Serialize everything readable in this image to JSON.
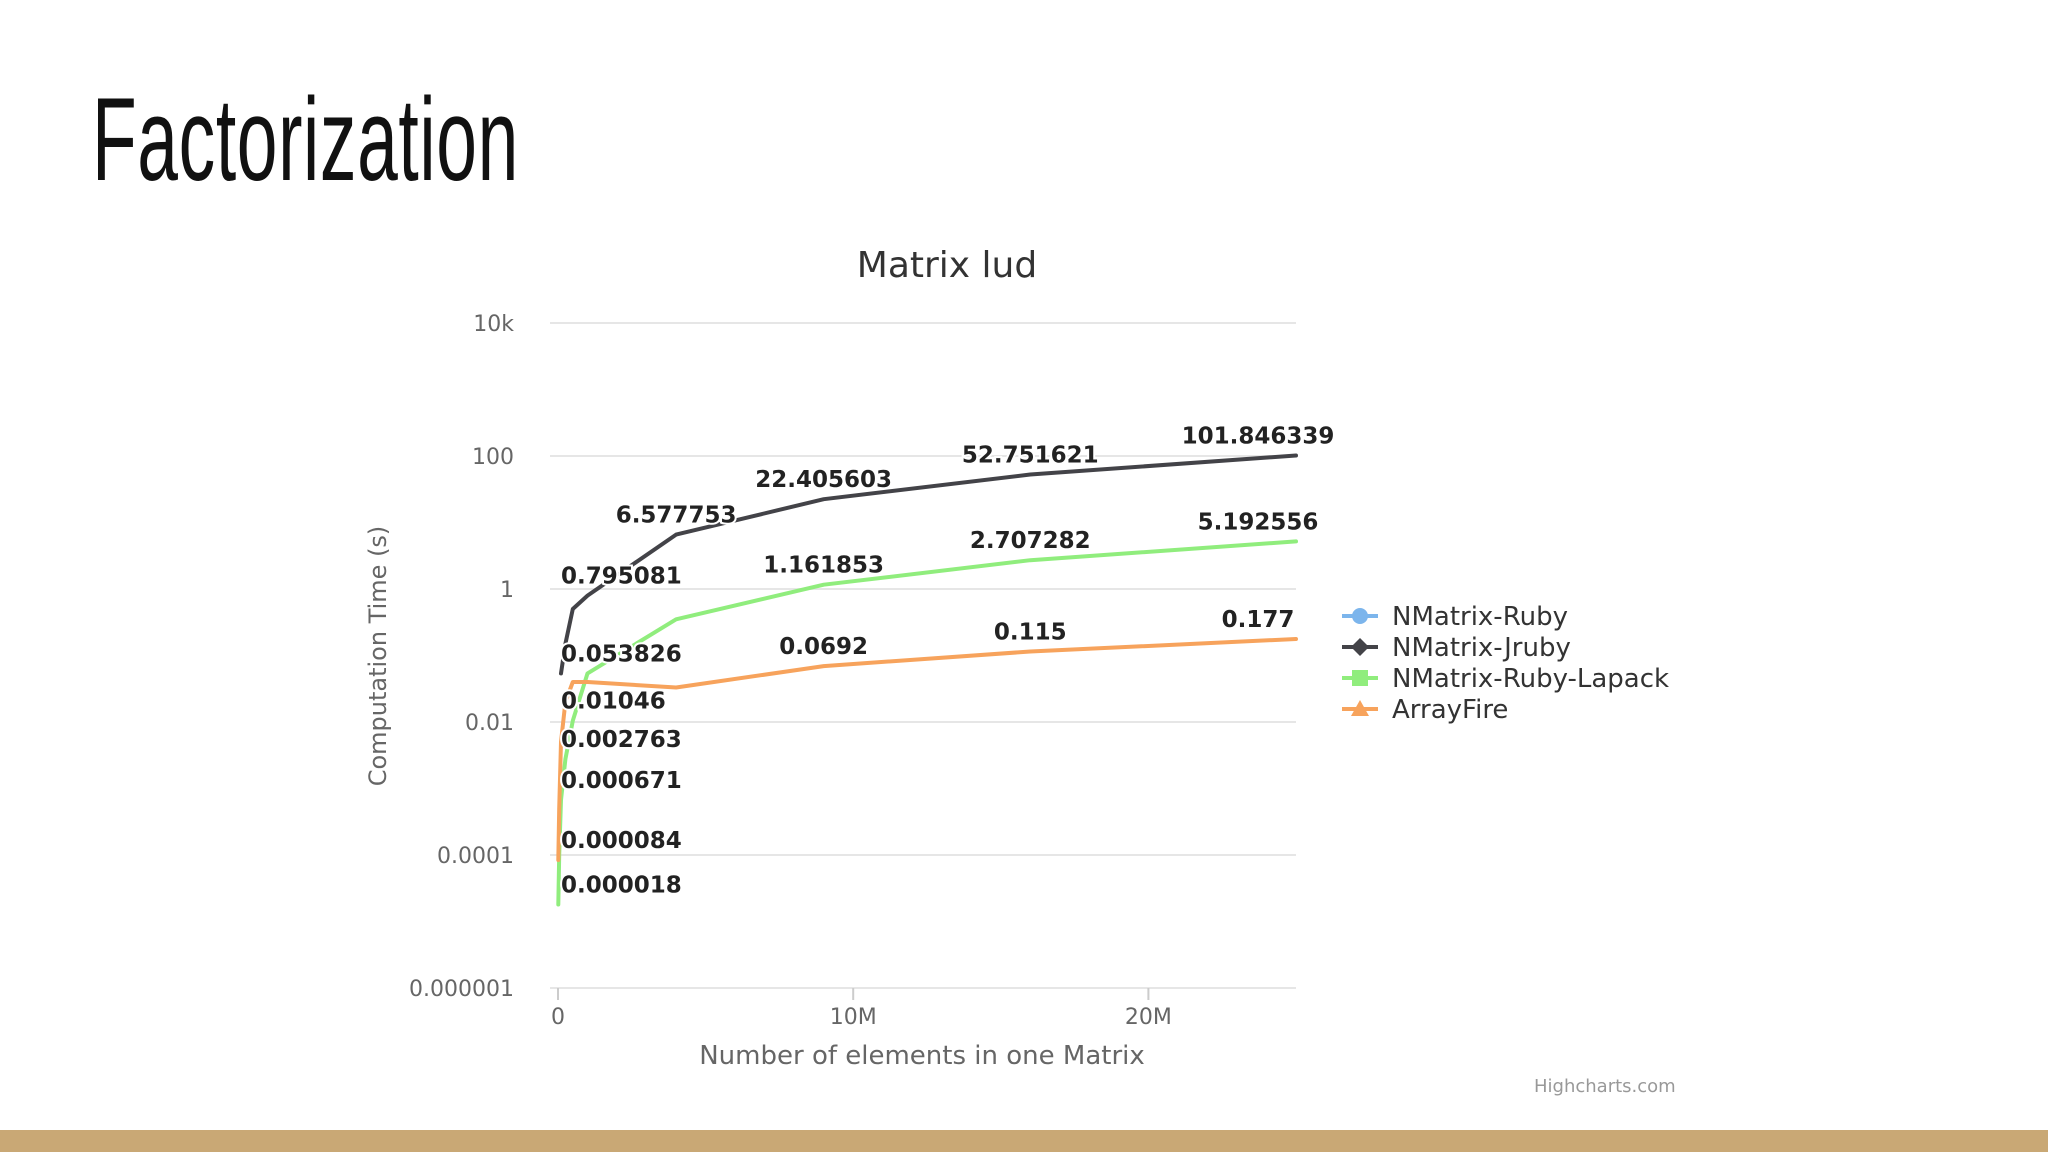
{
  "slide": {
    "title": "Factorization",
    "credit": "Highcharts.com"
  },
  "colors": {
    "bottom_bar": "#c9a875",
    "grid": "#e6e6e6",
    "axis_text": "#666666",
    "label_text": "#222222"
  },
  "chart_data": {
    "type": "line",
    "title": "Matrix lud",
    "xlabel": "Number of elements in one Matrix",
    "ylabel": "Computation Time (s)",
    "y_scale": "log",
    "xlim": [
      0,
      25000000
    ],
    "ylim": [
      1e-06,
      10000
    ],
    "x_ticks": [
      {
        "value": 0,
        "label": "0"
      },
      {
        "value": 10000000,
        "label": "10M"
      },
      {
        "value": 20000000,
        "label": "20M"
      }
    ],
    "y_ticks": [
      {
        "value": 10000,
        "label": "10k"
      },
      {
        "value": 100,
        "label": "100"
      },
      {
        "value": 1,
        "label": "1"
      },
      {
        "value": 0.01,
        "label": "0.01"
      },
      {
        "value": 0.0001,
        "label": "0.0001"
      },
      {
        "value": 1e-06,
        "label": "0.000001"
      }
    ],
    "grid": true,
    "legend_position": "right",
    "series": [
      {
        "name": "NMatrix-Ruby",
        "color": "#7cb5ec",
        "marker": "circle",
        "points": []
      },
      {
        "name": "NMatrix-Jruby",
        "color": "#434348",
        "marker": "diamond",
        "points": [
          {
            "x": 100000,
            "y": 0.053826
          },
          {
            "x": 250000,
            "y": 0.15
          },
          {
            "x": 500000,
            "y": 0.5
          },
          {
            "x": 1000000,
            "y": 0.795081
          },
          {
            "x": 4000000,
            "y": 6.577753
          },
          {
            "x": 9000000,
            "y": 22.405603
          },
          {
            "x": 16000000,
            "y": 52.751621
          },
          {
            "x": 25000000,
            "y": 101.846339
          }
        ]
      },
      {
        "name": "NMatrix-Ruby-Lapack",
        "color": "#90ed7d",
        "marker": "square",
        "points": [
          {
            "x": 10000,
            "y": 1.8e-05
          },
          {
            "x": 40000,
            "y": 0.0001
          },
          {
            "x": 100000,
            "y": 0.000671
          },
          {
            "x": 250000,
            "y": 0.002763
          },
          {
            "x": 500000,
            "y": 0.01046
          },
          {
            "x": 1000000,
            "y": 0.053826
          },
          {
            "x": 4000000,
            "y": 0.35
          },
          {
            "x": 9000000,
            "y": 1.161853
          },
          {
            "x": 16000000,
            "y": 2.707282
          },
          {
            "x": 25000000,
            "y": 5.192556
          }
        ]
      },
      {
        "name": "ArrayFire",
        "color": "#f7a35c",
        "marker": "triangle",
        "points": [
          {
            "x": 10000,
            "y": 8.4e-05
          },
          {
            "x": 40000,
            "y": 0.0005
          },
          {
            "x": 100000,
            "y": 0.005
          },
          {
            "x": 250000,
            "y": 0.02
          },
          {
            "x": 500000,
            "y": 0.04
          },
          {
            "x": 1000000,
            "y": 0.04
          },
          {
            "x": 4000000,
            "y": 0.033
          },
          {
            "x": 9000000,
            "y": 0.0692
          },
          {
            "x": 16000000,
            "y": 0.115
          },
          {
            "x": 25000000,
            "y": 0.177
          }
        ]
      }
    ],
    "data_labels": [
      {
        "text": "101.846339",
        "x": 25000000,
        "y": 101.846339
      },
      {
        "text": "52.751621",
        "x": 16000000,
        "y": 52.751621
      },
      {
        "text": "22.405603",
        "x": 9000000,
        "y": 22.405603
      },
      {
        "text": "6.577753",
        "x": 4000000,
        "y": 6.577753
      },
      {
        "text": "0.795081",
        "x": 1000000,
        "y": 0.795081
      },
      {
        "text": "0.053826",
        "x": 1000000,
        "y": 0.053826
      },
      {
        "text": "0.01046",
        "x": 1000000,
        "y": 0.01046
      },
      {
        "text": "0.002763",
        "x": 1000000,
        "y": 0.002763
      },
      {
        "text": "0.000671",
        "x": 1000000,
        "y": 0.000671
      },
      {
        "text": "0.000084",
        "x": 1000000,
        "y": 8.4e-05
      },
      {
        "text": "0.000018",
        "x": 1000000,
        "y": 1.8e-05
      },
      {
        "text": "5.192556",
        "x": 25000000,
        "y": 5.192556
      },
      {
        "text": "2.707282",
        "x": 16000000,
        "y": 2.707282
      },
      {
        "text": "1.161853",
        "x": 9000000,
        "y": 1.161853
      },
      {
        "text": "0.177",
        "x": 25000000,
        "y": 0.177
      },
      {
        "text": "0.115",
        "x": 16000000,
        "y": 0.115
      },
      {
        "text": "0.0692",
        "x": 9000000,
        "y": 0.0692
      }
    ]
  }
}
